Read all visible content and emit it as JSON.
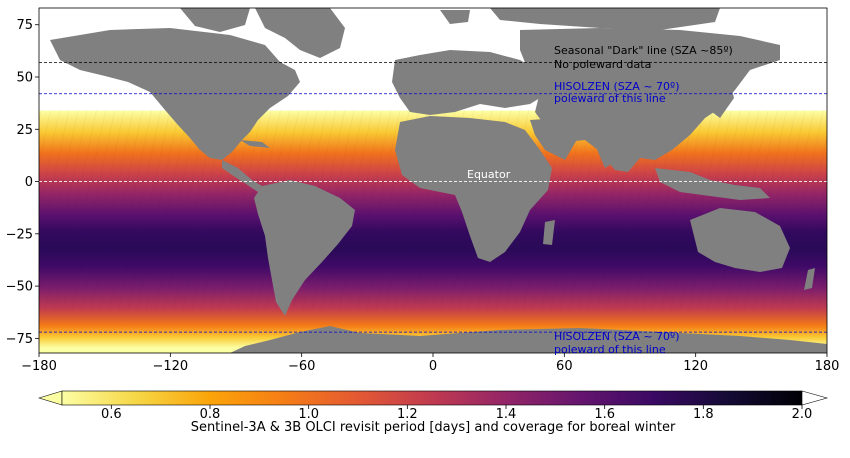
{
  "map": {
    "projection": "plate-carree",
    "x_ticks": [
      "−180",
      "−120",
      "−60",
      "0",
      "60",
      "120",
      "180"
    ],
    "y_ticks": [
      "75",
      "50",
      "25",
      "0",
      "−25",
      "−50",
      "−75"
    ],
    "x_tick_values": [
      -180,
      -120,
      -60,
      0,
      60,
      120,
      180
    ],
    "y_tick_values": [
      75,
      50,
      25,
      0,
      -25,
      -50,
      -75
    ],
    "xlim": [
      -180,
      180
    ],
    "ylim": [
      -82,
      83
    ],
    "land_color": "#808080",
    "no_data_color": "#ffffff"
  },
  "annotations": {
    "dark_line_label": "Seasonal \"Dark\" line (SZA ~85º)",
    "no_poleward": "No poleward data",
    "hisolzen_north_label": "HISOLZEN (SZA ~ 70º)",
    "hisolzen_north_sub": "poleward of this line",
    "equator_label": "Equator",
    "hisolzen_south_label": "HISOLZEN (SZA ~ 70º)",
    "hisolzen_south_sub": "poleward of this line"
  },
  "reference_lines": {
    "dark_line_lat": 57,
    "hisolzen_north_lat": 42,
    "equator_lat": 0,
    "hisolzen_south_lat": -72,
    "dark_line_color": "#000000",
    "hisolzen_color": "#0000cc",
    "equator_color": "#ffffff"
  },
  "colorbar": {
    "colormap": "inferno_r",
    "vmin": 0.5,
    "vmax": 2.0,
    "ticks": [
      "0.6",
      "0.8",
      "1.0",
      "1.2",
      "1.4",
      "1.6",
      "1.8",
      "2.0"
    ],
    "tick_values": [
      0.6,
      0.8,
      1.0,
      1.2,
      1.4,
      1.6,
      1.8,
      2.0
    ],
    "label": "Sentinel-3A & 3B OLCI revisit period [days] and coverage for boreal winter"
  }
}
